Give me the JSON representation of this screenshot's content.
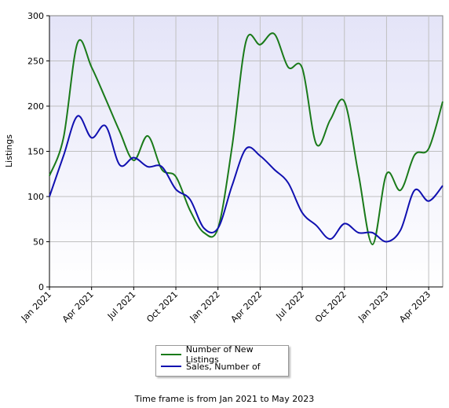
{
  "chart_data": {
    "type": "line",
    "ylabel": "Listings",
    "ylim": [
      0,
      300
    ],
    "yticks": [
      0,
      50,
      100,
      150,
      200,
      250,
      300
    ],
    "xticks": [
      "Jan 2021",
      "Apr 2021",
      "Jul 2021",
      "Oct 2021",
      "Jan 2022",
      "Apr 2022",
      "Jul 2022",
      "Oct 2022",
      "Jan 2023",
      "Apr 2023"
    ],
    "x": [
      "Jan 2021",
      "Feb 2021",
      "Mar 2021",
      "Apr 2021",
      "May 2021",
      "Jun 2021",
      "Jul 2021",
      "Aug 2021",
      "Sep 2021",
      "Oct 2021",
      "Nov 2021",
      "Dec 2021",
      "Jan 2022",
      "Feb 2022",
      "Mar 2022",
      "Apr 2022",
      "May 2022",
      "Jun 2022",
      "Jul 2022",
      "Aug 2022",
      "Sep 2022",
      "Oct 2022",
      "Nov 2022",
      "Dec 2022",
      "Jan 2023",
      "Feb 2023",
      "Mar 2023",
      "Apr 2023",
      "May 2023"
    ],
    "series": [
      {
        "name": "Number of New Listings",
        "color": "#1a7a1a",
        "values": [
          123,
          165,
          270,
          243,
          208,
          172,
          140,
          167,
          130,
          122,
          85,
          60,
          65,
          155,
          272,
          268,
          280,
          243,
          242,
          158,
          185,
          205,
          125,
          47,
          125,
          107,
          146,
          153,
          205
        ]
      },
      {
        "name": "Sales, Number of",
        "color": "#1010b0",
        "values": [
          100,
          145,
          189,
          165,
          178,
          135,
          143,
          133,
          133,
          108,
          97,
          65,
          65,
          112,
          153,
          145,
          130,
          115,
          82,
          68,
          53,
          70,
          60,
          60,
          50,
          63,
          107,
          95,
          112
        ]
      }
    ],
    "grid": true,
    "legend": "bottom-center"
  },
  "caption": "Time frame is from Jan 2021 to May 2023"
}
